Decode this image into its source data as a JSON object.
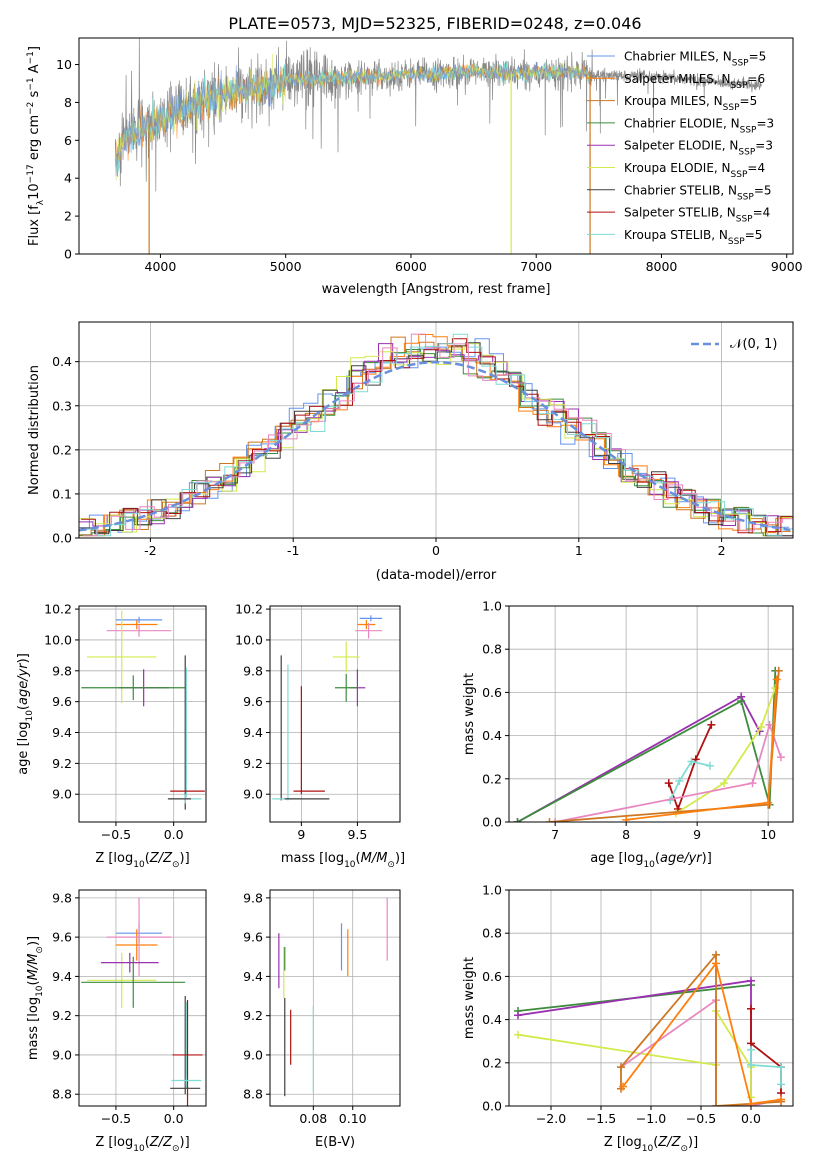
{
  "figure": {
    "title": "PLATE=0573, MJD=52325, FIBERID=0248, z=0.046"
  },
  "colors": {
    "chabrier_miles": "#6495ed",
    "salpeter_miles": "#ff7f0e",
    "kroupa_miles": "#cc7722",
    "chabrier_elodie": "#3c8c3c",
    "salpeter_elodie": "#9b30b0",
    "kroupa_elodie": "#d4ea4c",
    "chabrier_stelib": "#404040",
    "salpeter_stelib": "#b01010",
    "kroupa_stelib": "#7fdcd4",
    "pink": "#e888c0",
    "data": "#888888",
    "normal": "#6a8fdc"
  },
  "chart_data": [
    {
      "id": "spectrum",
      "type": "line",
      "xlabel": "wavelength [Angstrom, rest frame]",
      "ylabel": "Flux [f_λ10^-17 erg cm^-2 s^-1 A^-1]",
      "xlim": [
        3350,
        9050
      ],
      "ylim": [
        0,
        11.4
      ],
      "xticks": [
        4000,
        5000,
        6000,
        7000,
        8000,
        9000
      ],
      "yticks": [
        0,
        2,
        4,
        6,
        8,
        10
      ],
      "legend": [
        "Chabrier MILES, N_SSP=5",
        "Salpeter MILES, N_SSP=6",
        "Kroupa MILES, N_SSP=5",
        "Chabrier ELODIE, N_SSP=3",
        "Salpeter ELODIE, N_SSP=3",
        "Kroupa ELODIE, N_SSP=4",
        "Chabrier STELIB, N_SSP=5",
        "Salpeter STELIB, N_SSP=4",
        "Kroupa STELIB, N_SSP=5"
      ],
      "legend_placement": "upper-right",
      "data_x": [
        3650,
        3700,
        3800,
        3900,
        4000,
        4100,
        4200,
        4300,
        4400,
        4500,
        4600,
        4700,
        4800,
        4900,
        5000,
        5200,
        5400,
        5600,
        5800,
        6000,
        6200,
        6400,
        6600,
        6800,
        7000,
        7200,
        7400,
        7600,
        7800,
        8000,
        8200,
        8400,
        8600,
        8800
      ],
      "data_y": [
        5.0,
        6.0,
        6.4,
        6.8,
        7.1,
        7.4,
        7.7,
        8.1,
        8.2,
        8.4,
        8.6,
        8.6,
        8.8,
        9.0,
        9.2,
        9.2,
        9.3,
        9.4,
        9.4,
        9.5,
        9.5,
        9.6,
        9.6,
        9.5,
        9.6,
        9.6,
        9.5,
        9.4,
        9.4,
        9.3,
        9.2,
        9.1,
        9.0,
        8.9
      ],
      "model_x_max": 7430,
      "cutoffs": [
        {
          "color_key": "kroupa_miles",
          "x": 7430
        },
        {
          "color_key": "kroupa_elodie",
          "x": 6800
        },
        {
          "color_key": "kroupa_miles",
          "x": 3910
        }
      ]
    },
    {
      "id": "residuals",
      "type": "bar",
      "xlabel": "(data-model)/error",
      "ylabel": "Normed distribution",
      "xlim": [
        -2.5,
        2.5
      ],
      "ylim": [
        0,
        0.49
      ],
      "xticks": [
        -2,
        -1,
        0,
        1,
        2
      ],
      "yticks": [
        0.0,
        0.1,
        0.2,
        0.3,
        0.4
      ],
      "bin_width": 0.1,
      "legend": [
        "𝒩(0, 1)"
      ],
      "legend_placement": "upper-right",
      "normal_mean": 0,
      "normal_sigma": 1
    },
    {
      "id": "age-vs-z",
      "type": "scatter",
      "xlabel": "Z [log₁₀(Z/Z☉)]",
      "ylabel": "age  [log₁₀(age/yr)]",
      "xlim": [
        -0.82,
        0.28
      ],
      "ylim": [
        8.82,
        10.22
      ],
      "xticks": [
        -0.5,
        0.0
      ],
      "xticklabels": [
        "−0.5",
        "0.0"
      ],
      "yticks": [
        9.0,
        9.2,
        9.4,
        9.6,
        9.8,
        10.0,
        10.2
      ],
      "errorbars": [
        {
          "color_key": "chabrier_miles",
          "x": -0.3,
          "y": 10.13,
          "xerr": 0.2,
          "yerr": 0.02
        },
        {
          "color_key": "salpeter_miles",
          "x": -0.32,
          "y": 10.1,
          "xerr": 0.18,
          "yerr": 0.03
        },
        {
          "color_key": "pink",
          "x": -0.3,
          "y": 10.06,
          "xerr": 0.28,
          "yerr": 0.04
        },
        {
          "color_key": "kroupa_elodie",
          "x": -0.45,
          "y": 9.89,
          "xerr": 0.3,
          "yerr": 0.3
        },
        {
          "color_key": "salpeter_elodie",
          "x": -0.26,
          "y": 9.69,
          "xerr": 0.22,
          "yerr": 0.12
        },
        {
          "color_key": "chabrier_elodie",
          "x": -0.35,
          "y": 9.69,
          "xerr": 0.45,
          "yerr": 0.08
        },
        {
          "color_key": "chabrier_stelib",
          "x": 0.1,
          "y": 9.4,
          "xerr": 0.0,
          "yerr": 0.5
        },
        {
          "color_key": "kroupa_stelib",
          "x": 0.11,
          "y": 9.4,
          "xerr": 0.0,
          "yerr": 0.42
        },
        {
          "color_key": "salpeter_stelib",
          "x": 0.12,
          "y": 9.02,
          "xerr": 0.15,
          "yerr": 0.0
        },
        {
          "color_key": "kroupa_stelib",
          "x": 0.1,
          "y": 8.97,
          "xerr": 0.14,
          "yerr": 0.03
        },
        {
          "color_key": "chabrier_stelib",
          "x": 0.05,
          "y": 8.97,
          "xerr": 0.1,
          "yerr": 0.0
        }
      ]
    },
    {
      "id": "age-vs-mass",
      "type": "scatter",
      "xlabel": "mass [log₁₀(M/M☉)]",
      "ylabel": "",
      "xlim": [
        8.72,
        9.88
      ],
      "ylim": [
        8.82,
        10.22
      ],
      "xticks": [
        9.0,
        9.5
      ],
      "yticks": [
        9.0,
        9.2,
        9.4,
        9.6,
        9.8,
        10.0,
        10.2
      ],
      "errorbars": [
        {
          "color_key": "chabrier_miles",
          "x": 9.62,
          "y": 10.14,
          "xerr": 0.1,
          "yerr": 0.02
        },
        {
          "color_key": "salpeter_miles",
          "x": 9.58,
          "y": 10.1,
          "xerr": 0.08,
          "yerr": 0.03
        },
        {
          "color_key": "pink",
          "x": 9.6,
          "y": 10.06,
          "xerr": 0.12,
          "yerr": 0.05
        },
        {
          "color_key": "kroupa_elodie",
          "x": 9.4,
          "y": 9.89,
          "xerr": 0.12,
          "yerr": 0.1
        },
        {
          "color_key": "salpeter_elodie",
          "x": 9.5,
          "y": 9.69,
          "xerr": 0.07,
          "yerr": 0.12
        },
        {
          "color_key": "chabrier_elodie",
          "x": 9.4,
          "y": 9.69,
          "xerr": 0.1,
          "yerr": 0.09
        },
        {
          "color_key": "chabrier_stelib",
          "x": 8.82,
          "y": 9.43,
          "xerr": 0.0,
          "yerr": 0.47
        },
        {
          "color_key": "kroupa_stelib",
          "x": 8.88,
          "y": 9.4,
          "xerr": 0.0,
          "yerr": 0.44
        },
        {
          "color_key": "salpeter_stelib",
          "x": 9.0,
          "y": 9.35,
          "xerr": 0.0,
          "yerr": 0.35
        },
        {
          "color_key": "salpeter_stelib",
          "x": 9.07,
          "y": 9.02,
          "xerr": 0.14,
          "yerr": 0.0
        },
        {
          "color_key": "kroupa_stelib",
          "x": 8.87,
          "y": 8.97,
          "xerr": 0.13,
          "yerr": 0.0
        },
        {
          "color_key": "chabrier_stelib",
          "x": 9.05,
          "y": 8.97,
          "xerr": 0.2,
          "yerr": 0.0
        }
      ]
    },
    {
      "id": "weight-vs-age",
      "type": "line",
      "xlabel": "age  [log₁₀(age/yr)]",
      "ylabel": "mass weight",
      "xlim": [
        6.35,
        10.35
      ],
      "ylim": [
        0,
        1.0
      ],
      "xticks": [
        7,
        8,
        9,
        10
      ],
      "yticks": [
        0.0,
        0.2,
        0.4,
        0.6,
        0.8,
        1.0
      ],
      "series": [
        {
          "color_key": "salpeter_elodie",
          "x": [
            6.47,
            9.62,
            9.88
          ],
          "y": [
            0.0,
            0.58,
            0.42
          ]
        },
        {
          "color_key": "chabrier_elodie",
          "x": [
            6.47,
            9.62,
            10.02,
            10.1
          ],
          "y": [
            0.0,
            0.56,
            0.08,
            0.7
          ]
        },
        {
          "color_key": "salpeter_stelib",
          "x": [
            8.6,
            8.73,
            8.98,
            9.2
          ],
          "y": [
            0.18,
            0.06,
            0.29,
            0.45
          ]
        },
        {
          "color_key": "kroupa_stelib",
          "x": [
            8.62,
            8.75,
            8.92,
            9.18
          ],
          "y": [
            0.1,
            0.19,
            0.28,
            0.26
          ]
        },
        {
          "color_key": "kroupa_elodie",
          "x": [
            8.7,
            9.38,
            9.9,
            10.1
          ],
          "y": [
            0.04,
            0.18,
            0.44,
            0.62
          ]
        },
        {
          "color_key": "pink",
          "x": [
            7.0,
            9.78,
            10.02,
            10.18
          ],
          "y": [
            0.0,
            0.18,
            0.45,
            0.3
          ]
        },
        {
          "color_key": "kroupa_miles",
          "x": [
            6.92,
            10.0,
            10.15
          ],
          "y": [
            0.0,
            0.08,
            0.7
          ]
        },
        {
          "color_key": "salpeter_miles",
          "x": [
            8.0,
            10.0,
            10.12
          ],
          "y": [
            0.01,
            0.09,
            0.66
          ]
        }
      ]
    },
    {
      "id": "mass-vs-z",
      "type": "scatter",
      "xlabel": "Z [log₁₀(Z/Z☉)]",
      "ylabel": "mass [log₁₀(M/M☉)]",
      "xlim": [
        -0.82,
        0.28
      ],
      "ylim": [
        8.74,
        9.84
      ],
      "xticks": [
        -0.5,
        0.0
      ],
      "xticklabels": [
        "−0.5",
        "0.0"
      ],
      "yticks": [
        8.8,
        9.0,
        9.2,
        9.4,
        9.6,
        9.8
      ],
      "errorbars": [
        {
          "color_key": "chabrier_miles",
          "x": -0.3,
          "y": 9.62,
          "xerr": 0.2,
          "yerr": 0.05
        },
        {
          "color_key": "salpeter_miles",
          "x": -0.32,
          "y": 9.56,
          "xerr": 0.18,
          "yerr": 0.08
        },
        {
          "color_key": "pink",
          "x": -0.3,
          "y": 9.6,
          "xerr": 0.28,
          "yerr": 0.2
        },
        {
          "color_key": "kroupa_elodie",
          "x": -0.45,
          "y": 9.38,
          "xerr": 0.3,
          "yerr": 0.14
        },
        {
          "color_key": "salpeter_elodie",
          "x": -0.38,
          "y": 9.47,
          "xerr": 0.25,
          "yerr": 0.05
        },
        {
          "color_key": "chabrier_elodie",
          "x": -0.35,
          "y": 9.37,
          "xerr": 0.45,
          "yerr": 0.13
        },
        {
          "color_key": "chabrier_stelib",
          "x": 0.1,
          "y": 9.05,
          "xerr": 0.0,
          "yerr": 0.25
        },
        {
          "color_key": "kroupa_stelib",
          "x": 0.11,
          "y": 9.05,
          "xerr": 0.0,
          "yerr": 0.22
        },
        {
          "color_key": "salpeter_stelib",
          "x": 0.12,
          "y": 9.0,
          "xerr": 0.13,
          "yerr": 0.28
        },
        {
          "color_key": "kroupa_stelib",
          "x": 0.11,
          "y": 8.87,
          "xerr": 0.13,
          "yerr": 0.02
        },
        {
          "color_key": "chabrier_stelib",
          "x": 0.1,
          "y": 8.83,
          "xerr": 0.13,
          "yerr": 0.0
        }
      ]
    },
    {
      "id": "mass-vs-ebv",
      "type": "scatter",
      "xlabel": "E(B-V)",
      "ylabel": "",
      "xlim": [
        0.058,
        0.124
      ],
      "ylim": [
        8.74,
        9.84
      ],
      "xticks": [
        0.08,
        0.1
      ],
      "xticklabels": [
        "0.08",
        "0.10"
      ],
      "yticks": [
        8.8,
        9.0,
        9.2,
        9.4,
        9.6,
        9.8
      ],
      "errorbars": [
        {
          "color_key": "salpeter_elodie",
          "x": 0.0625,
          "y": 9.48,
          "xerr": 0.0,
          "yerr": 0.14
        },
        {
          "color_key": "kroupa_elodie",
          "x": 0.065,
          "y": 9.42,
          "xerr": 0.0,
          "yerr": 0.13
        },
        {
          "color_key": "chabrier_elodie",
          "x": 0.0655,
          "y": 9.49,
          "xerr": 0.0,
          "yerr": 0.06
        },
        {
          "color_key": "chabrier_stelib",
          "x": 0.0655,
          "y": 9.04,
          "xerr": 0.0,
          "yerr": 0.25
        },
        {
          "color_key": "salpeter_stelib",
          "x": 0.0685,
          "y": 9.09,
          "xerr": 0.0,
          "yerr": 0.14
        },
        {
          "color_key": "kroupa_stelib",
          "x": 0.08,
          "y": 9.03,
          "xerr": 0.0,
          "yerr": 0.22
        },
        {
          "color_key": "chabrier_miles",
          "x": 0.0943,
          "y": 9.55,
          "xerr": 0.0,
          "yerr": 0.12
        },
        {
          "color_key": "salpeter_miles",
          "x": 0.0975,
          "y": 9.52,
          "xerr": 0.0,
          "yerr": 0.12
        },
        {
          "color_key": "pink",
          "x": 0.1175,
          "y": 9.64,
          "xerr": 0.0,
          "yerr": 0.16
        }
      ]
    },
    {
      "id": "weight-vs-z",
      "type": "line",
      "xlabel": "Z [log₁₀(Z/Z☉)]",
      "ylabel": "mass weight",
      "xlim": [
        -2.42,
        0.42
      ],
      "ylim": [
        0,
        1.0
      ],
      "xticks": [
        -2.0,
        -1.5,
        -1.0,
        -0.5,
        0.0
      ],
      "xticklabels": [
        "−2.0",
        "−1.5",
        "−1.0",
        "−0.5",
        "0.0"
      ],
      "yticks": [
        0.0,
        0.2,
        0.4,
        0.6,
        0.8,
        1.0
      ],
      "series": [
        {
          "color_key": "chabrier_elodie",
          "x": [
            -2.33,
            0.0
          ],
          "y": [
            0.44,
            0.56
          ]
        },
        {
          "color_key": "salpeter_elodie",
          "x": [
            -2.33,
            0.0,
            0.0
          ],
          "y": [
            0.42,
            0.58,
            0.0
          ]
        },
        {
          "color_key": "kroupa_elodie",
          "x": [
            -2.33,
            -0.35,
            -0.35,
            0.0,
            0.0
          ],
          "y": [
            0.33,
            0.19,
            0.44,
            0.18,
            0.04
          ]
        },
        {
          "color_key": "salpeter_stelib",
          "x": [
            0.0,
            0.0,
            0.3,
            0.3
          ],
          "y": [
            0.45,
            0.29,
            0.18,
            0.06
          ]
        },
        {
          "color_key": "kroupa_stelib",
          "x": [
            0.0,
            0.0,
            0.3,
            0.3
          ],
          "y": [
            0.26,
            0.19,
            0.18,
            0.1
          ]
        },
        {
          "color_key": "pink",
          "x": [
            -1.3,
            -0.35,
            -0.35,
            0.0,
            0.3
          ],
          "y": [
            0.18,
            0.49,
            0.0,
            0.0,
            0.03
          ]
        },
        {
          "color_key": "kroupa_miles",
          "x": [
            -1.3,
            -1.3,
            -0.35,
            -0.35,
            0.0,
            0.3
          ],
          "y": [
            0.08,
            0.18,
            0.7,
            0.0,
            0.01,
            0.02
          ]
        },
        {
          "color_key": "salpeter_miles",
          "x": [
            -1.28,
            -0.35,
            0.0,
            0.3
          ],
          "y": [
            0.09,
            0.66,
            0.01,
            0.03
          ]
        }
      ]
    }
  ]
}
